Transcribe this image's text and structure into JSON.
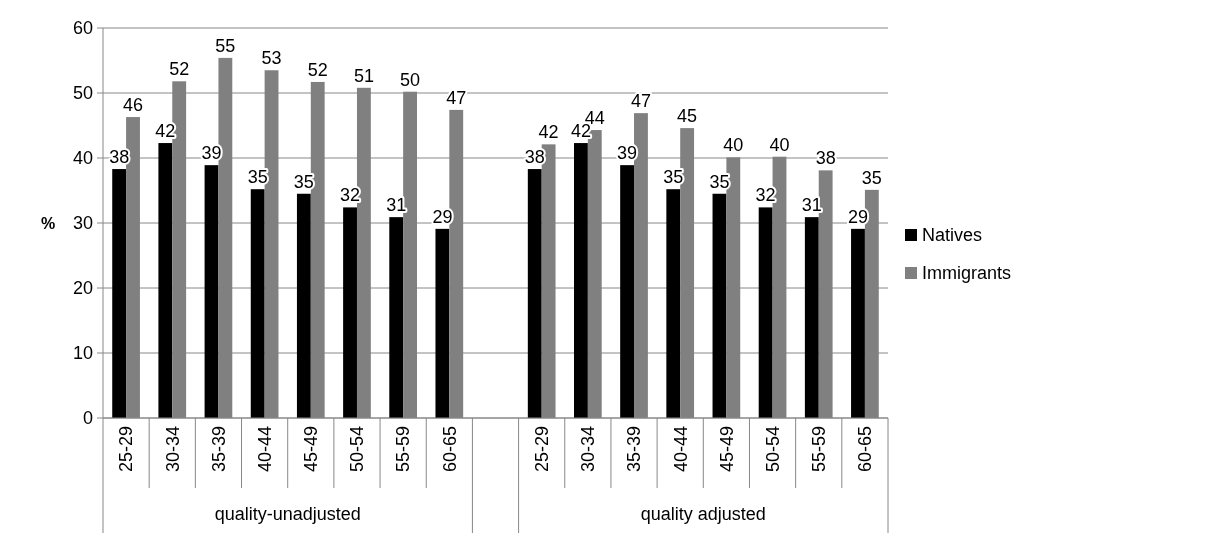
{
  "chart_data": {
    "type": "bar",
    "ylabel": "%",
    "categories": [
      "25-29",
      "30-34",
      "35-39",
      "40-44",
      "45-49",
      "50-54",
      "55-59",
      "60-65",
      null,
      "25-29",
      "30-34",
      "35-39",
      "40-44",
      "45-49",
      "50-54",
      "55-59",
      "60-65"
    ],
    "annotations": [
      "quality-unadjusted",
      "quality adjusted"
    ],
    "series": [
      {
        "name": "Natives",
        "color": "#000000",
        "values": [
          38.3,
          42.3,
          38.9,
          35.2,
          34.5,
          32.4,
          30.9,
          29.1,
          null,
          38.3,
          42.3,
          38.9,
          35.2,
          34.5,
          32.4,
          30.9,
          29.1
        ],
        "value_labels": [
          "38",
          "42",
          "39",
          "35",
          "35",
          "32",
          "31",
          "29",
          null,
          "38",
          "42",
          "39",
          "35",
          "35",
          "32",
          "31",
          "29"
        ]
      },
      {
        "name": "Immigrants",
        "color": "#808080",
        "values": [
          46.3,
          51.8,
          55.4,
          53.5,
          51.7,
          50.8,
          50.2,
          47.4,
          null,
          42.1,
          44.3,
          46.9,
          44.6,
          40.1,
          40.2,
          38.1,
          35.1
        ],
        "value_labels": [
          "46",
          "52",
          "55",
          "53",
          "52",
          "51",
          "50",
          "47",
          null,
          "42",
          "44",
          "47",
          "45",
          "40",
          "40",
          "38",
          "35"
        ]
      }
    ],
    "ylim": [
      0,
      60
    ],
    "yticks": [
      0,
      10,
      20,
      30,
      40,
      50,
      60
    ],
    "grid": "y",
    "legend": "right"
  }
}
